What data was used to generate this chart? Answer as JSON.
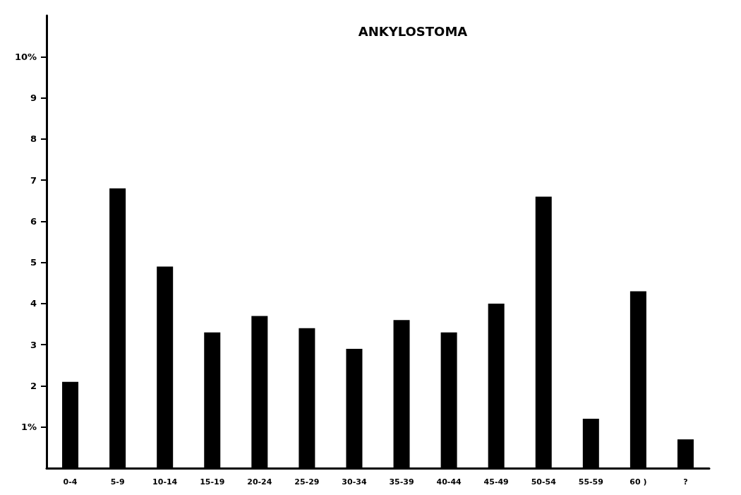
{
  "chart_data": {
    "type": "bar",
    "title": "ANKYLOSTOMA",
    "categories": [
      "0-4",
      "5-9",
      "10-14",
      "15-19",
      "20-24",
      "25-29",
      "30-34",
      "35-39",
      "40-44",
      "45-49",
      "50-54",
      "55-59",
      "60 )",
      "?"
    ],
    "values": [
      2.1,
      6.8,
      4.9,
      3.3,
      3.7,
      3.4,
      2.9,
      3.6,
      3.3,
      4.0,
      6.6,
      1.2,
      4.3,
      0.7
    ],
    "color": "#000000",
    "ylim": [
      0,
      11
    ],
    "yticks": [
      {
        "value": 1,
        "label": "1%"
      },
      2,
      3,
      4,
      5,
      6,
      7,
      8,
      9,
      {
        "value": 10,
        "label": "10%"
      }
    ],
    "grid": false
  }
}
